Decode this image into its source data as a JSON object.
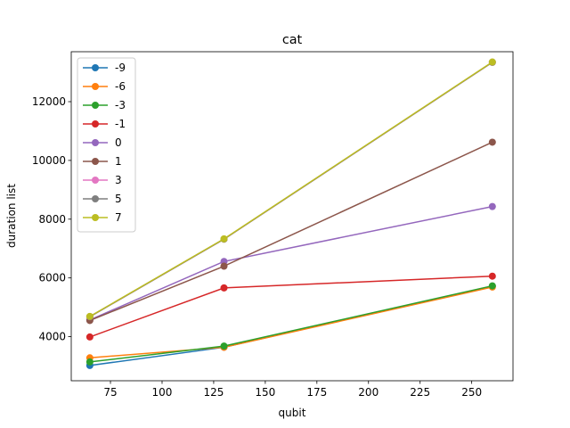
{
  "chart_data": {
    "type": "line",
    "title": "cat",
    "xlabel": "qubit",
    "ylabel": "duration list",
    "xlim": [
      56,
      270
    ],
    "ylim": [
      2500,
      13700
    ],
    "xticks": [
      75,
      100,
      125,
      150,
      175,
      200,
      225,
      250
    ],
    "yticks": [
      4000,
      6000,
      8000,
      10000,
      12000
    ],
    "grid": false,
    "legend_position": "top-left",
    "x": [
      65,
      130,
      260
    ],
    "series": [
      {
        "name": "-9",
        "color": "#1f77b4",
        "values": [
          3020,
          3640,
          5720
        ]
      },
      {
        "name": "-6",
        "color": "#ff7f0e",
        "values": [
          3280,
          3640,
          5690
        ]
      },
      {
        "name": "-3",
        "color": "#2ca02c",
        "values": [
          3140,
          3680,
          5730
        ]
      },
      {
        "name": "-1",
        "color": "#d62728",
        "values": [
          3990,
          5660,
          6060
        ]
      },
      {
        "name": "0",
        "color": "#9467bd",
        "values": [
          4570,
          6560,
          8430
        ]
      },
      {
        "name": "1",
        "color": "#8c564b",
        "values": [
          4550,
          6400,
          10620
        ]
      },
      {
        "name": "3",
        "color": "#e377c2",
        "values": [
          4680,
          7320,
          13340
        ]
      },
      {
        "name": "5",
        "color": "#7f7f7f",
        "values": [
          4680,
          7320,
          13340
        ]
      },
      {
        "name": "7",
        "color": "#bcbd22",
        "values": [
          4690,
          7330,
          13350
        ]
      }
    ]
  }
}
